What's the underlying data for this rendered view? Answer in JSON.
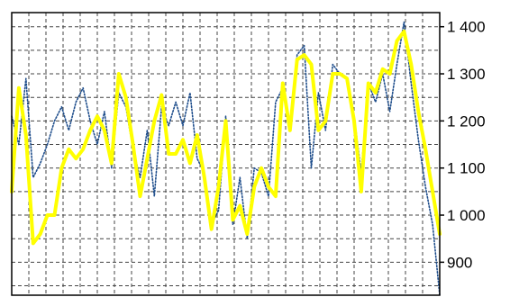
{
  "chart_data": {
    "type": "line",
    "title": "",
    "xlabel": "",
    "ylabel": "",
    "ylim": [
      830,
      1430
    ],
    "yticks": [
      900,
      1000,
      1100,
      1200,
      1300,
      1400
    ],
    "ytick_labels": [
      "900",
      "1 000",
      "1 100",
      "1 200",
      "1 300",
      "1 400"
    ],
    "y_axis_position": "right",
    "grid": true,
    "grid_style": "dashed",
    "n_points": 61,
    "series": [
      {
        "style": "solid",
        "color": "#ffff00",
        "width": "thick",
        "values": [
          1050,
          1270,
          1170,
          940,
          960,
          1000,
          1000,
          1100,
          1140,
          1120,
          1140,
          1180,
          1210,
          1180,
          1110,
          1300,
          1250,
          1150,
          1040,
          1120,
          1200,
          1255,
          1130,
          1130,
          1160,
          1110,
          1170,
          1080,
          970,
          1060,
          1200,
          990,
          1020,
          960,
          1060,
          1100,
          1060,
          1040,
          1280,
          1180,
          1330,
          1340,
          1320,
          1180,
          1200,
          1300,
          1300,
          1290,
          1200,
          1050,
          1280,
          1260,
          1310,
          1300,
          1370,
          1390,
          1320,
          1220,
          1140,
          1050,
          960
        ]
      },
      {
        "style": "dotted",
        "color": "#1f4e8c",
        "width": "thin",
        "values": [
          1210,
          1150,
          1290,
          1080,
          1110,
          1150,
          1200,
          1230,
          1180,
          1240,
          1270,
          1200,
          1150,
          1220,
          1100,
          1260,
          1230,
          1140,
          1080,
          1180,
          1040,
          1230,
          1190,
          1240,
          1190,
          1260,
          1120,
          1090,
          980,
          1010,
          1210,
          980,
          1080,
          950,
          1100,
          1090,
          1040,
          1240,
          1270,
          1180,
          1340,
          1360,
          1100,
          1260,
          1180,
          1320,
          1300,
          1290,
          1210,
          1090,
          1280,
          1240,
          1300,
          1220,
          1320,
          1410,
          1280,
          1160,
          1060,
          980,
          830
        ]
      }
    ]
  }
}
